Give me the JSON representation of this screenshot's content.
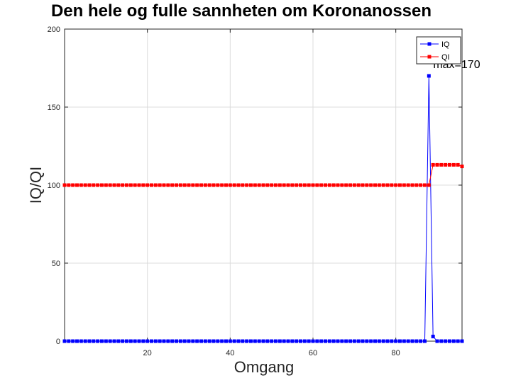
{
  "chart_data": {
    "type": "line",
    "title": "Den hele og fulle sannheten om Koronanossen",
    "xlabel": "Omgang",
    "ylabel": "IQ/QI",
    "xlim": [
      0,
      96
    ],
    "ylim": [
      0,
      200
    ],
    "xticks": [
      20,
      40,
      60,
      80
    ],
    "yticks": [
      0,
      50,
      100,
      150,
      200
    ],
    "grid": true,
    "legend_position": "top-right",
    "annotation": {
      "text": "max=170",
      "x": 88,
      "y": 170
    },
    "series": [
      {
        "name": "IQ",
        "color": "#0000ff",
        "marker": "square",
        "values": [
          0,
          0,
          0,
          0,
          0,
          0,
          0,
          0,
          0,
          0,
          0,
          0,
          0,
          0,
          0,
          0,
          0,
          0,
          0,
          0,
          0,
          0,
          0,
          0,
          0,
          0,
          0,
          0,
          0,
          0,
          0,
          0,
          0,
          0,
          0,
          0,
          0,
          0,
          0,
          0,
          0,
          0,
          0,
          0,
          0,
          0,
          0,
          0,
          0,
          0,
          0,
          0,
          0,
          0,
          0,
          0,
          0,
          0,
          0,
          0,
          0,
          0,
          0,
          0,
          0,
          0,
          0,
          0,
          0,
          0,
          0,
          0,
          0,
          0,
          0,
          0,
          0,
          0,
          0,
          0,
          0,
          0,
          0,
          0,
          0,
          0,
          0,
          0,
          170,
          3,
          0,
          0,
          0,
          0,
          0,
          0,
          0
        ]
      },
      {
        "name": "QI",
        "color": "#ff0000",
        "marker": "square",
        "values": [
          100,
          100,
          100,
          100,
          100,
          100,
          100,
          100,
          100,
          100,
          100,
          100,
          100,
          100,
          100,
          100,
          100,
          100,
          100,
          100,
          100,
          100,
          100,
          100,
          100,
          100,
          100,
          100,
          100,
          100,
          100,
          100,
          100,
          100,
          100,
          100,
          100,
          100,
          100,
          100,
          100,
          100,
          100,
          100,
          100,
          100,
          100,
          100,
          100,
          100,
          100,
          100,
          100,
          100,
          100,
          100,
          100,
          100,
          100,
          100,
          100,
          100,
          100,
          100,
          100,
          100,
          100,
          100,
          100,
          100,
          100,
          100,
          100,
          100,
          100,
          100,
          100,
          100,
          100,
          100,
          100,
          100,
          100,
          100,
          100,
          100,
          100,
          100,
          100,
          113,
          113,
          113,
          113,
          113,
          113,
          113,
          112
        ]
      }
    ]
  }
}
